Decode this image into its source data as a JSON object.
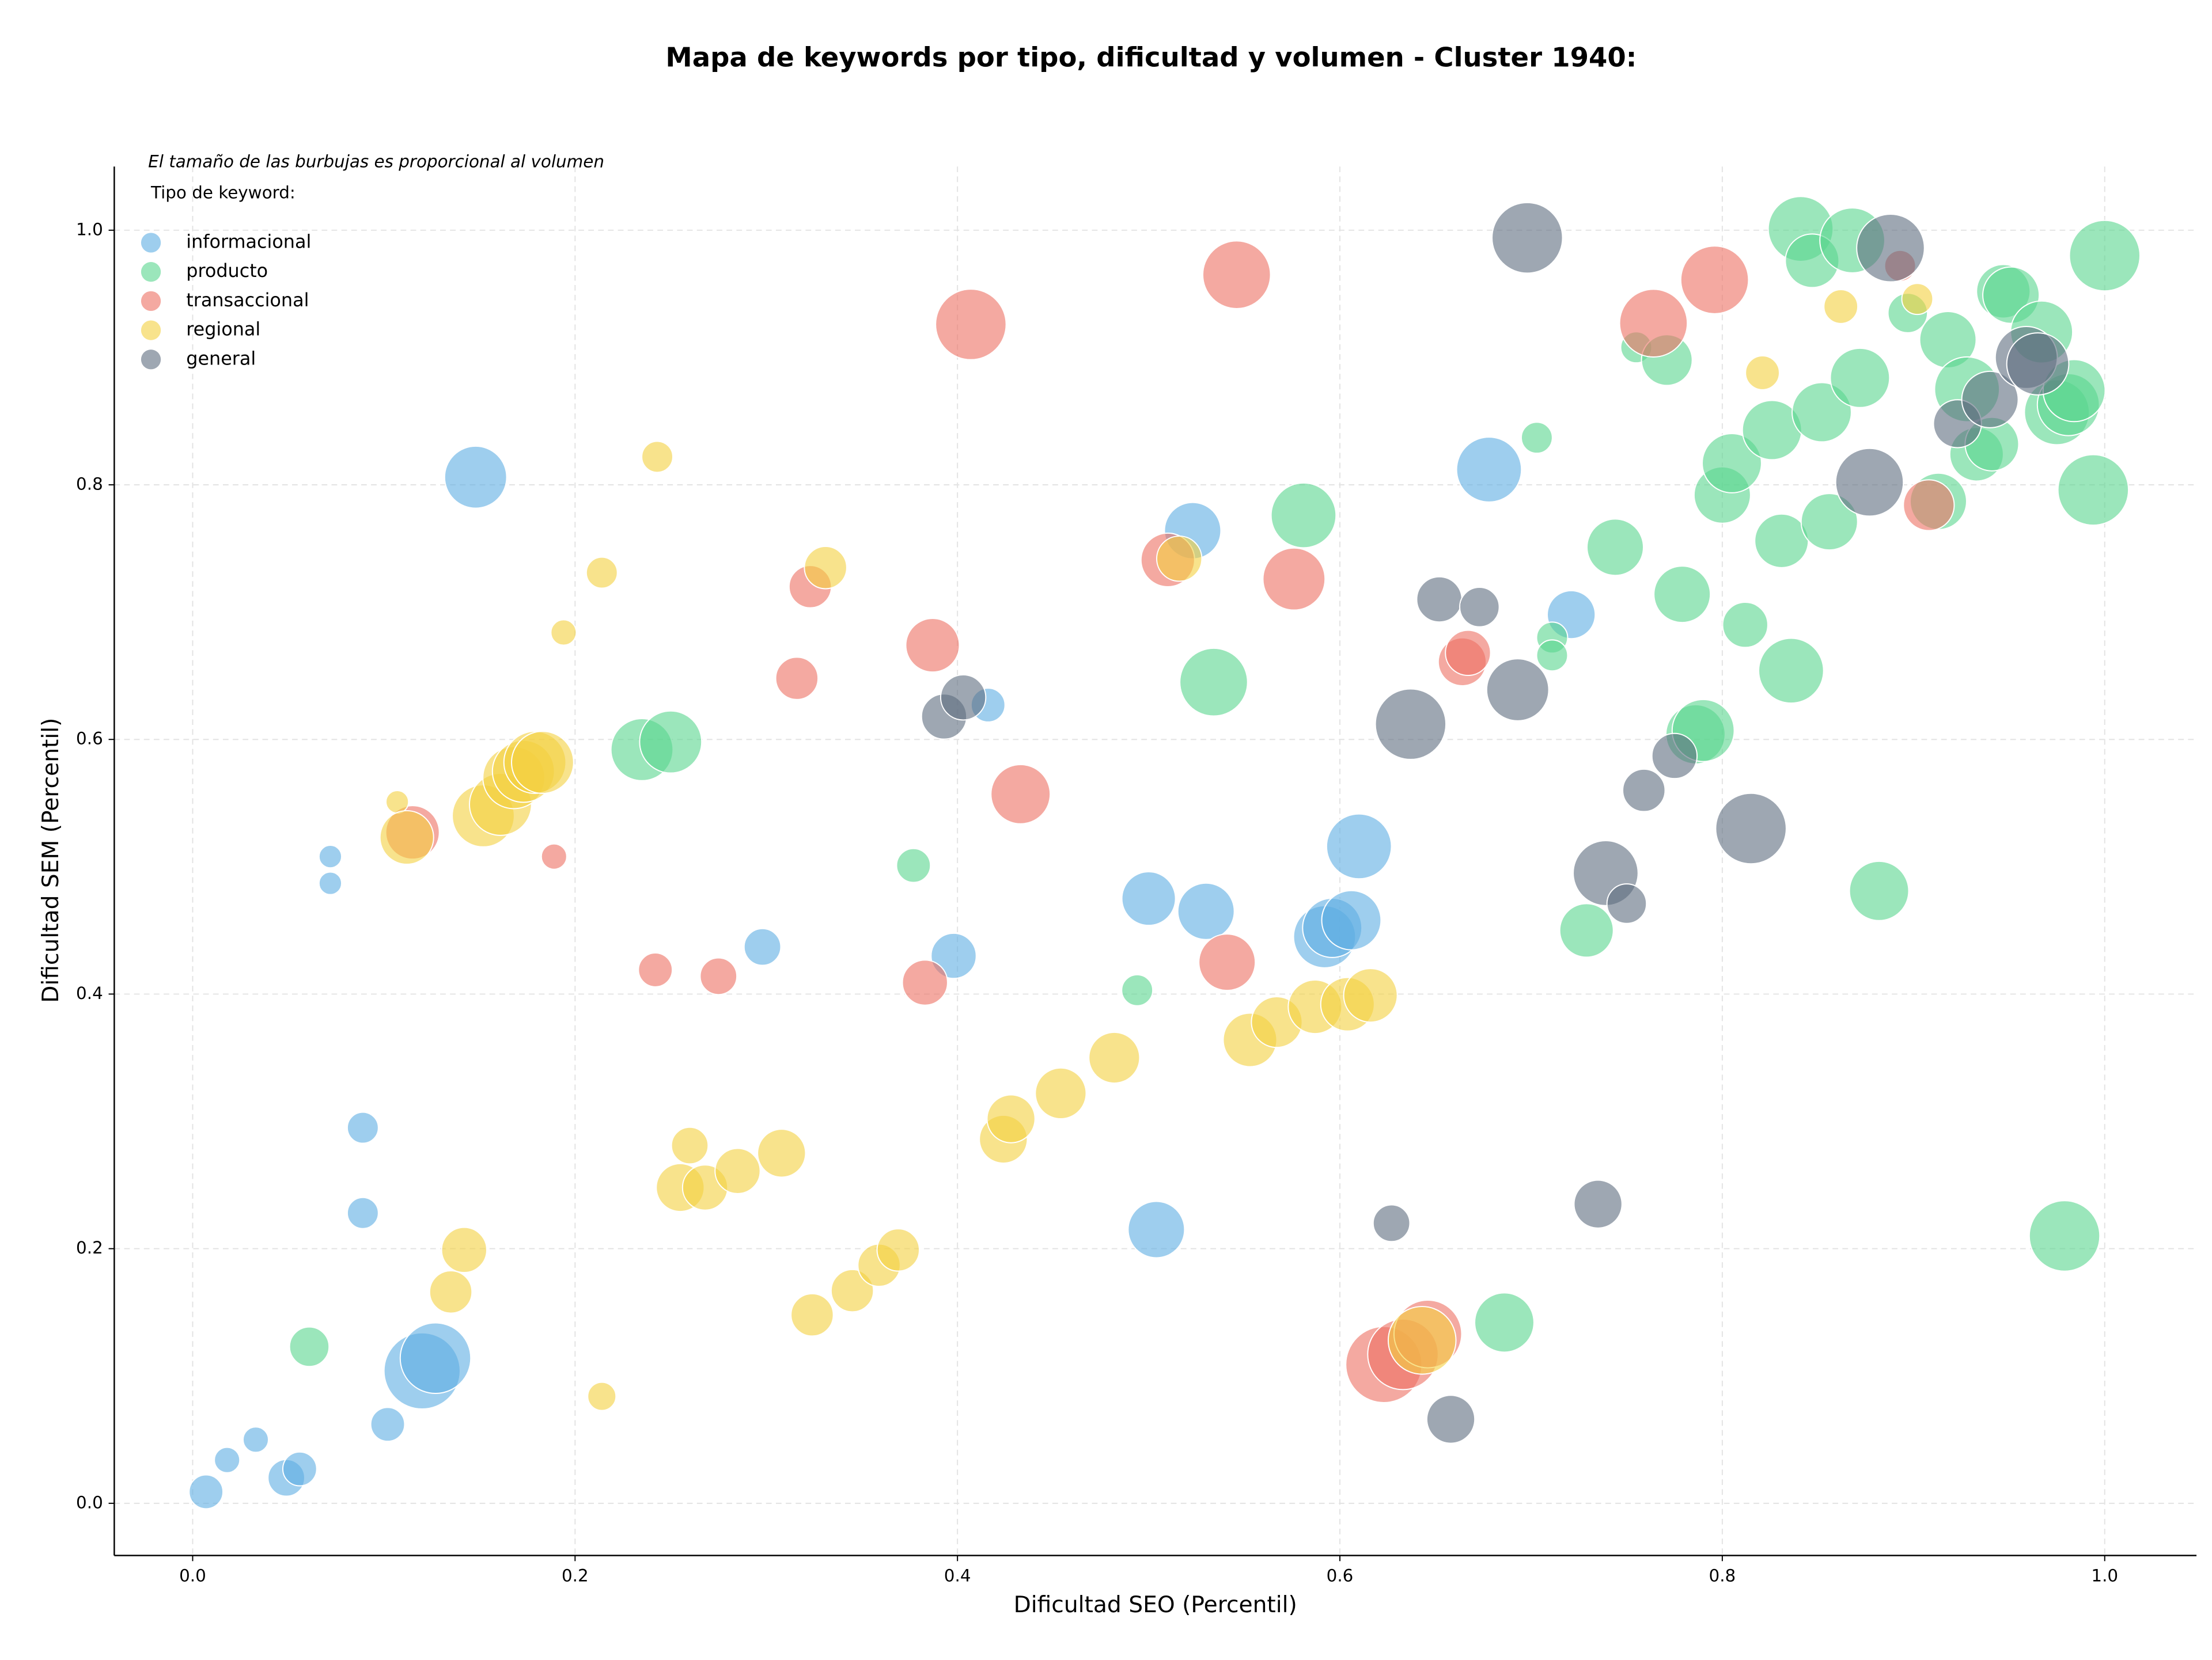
{
  "chart_data": {
    "type": "bubble",
    "title": "Mapa de keywords por tipo, dificultad y volumen - Cluster 1940:",
    "x_label": "Dificultad SEO (Percentil)",
    "y_label": "Dificultad SEM (Percentil)",
    "note": "El tamaño de las burbujas es proporcional al volumen",
    "legend_title": "Tipo de keyword:",
    "legend_position": "upper left",
    "grid": true,
    "xlim": [
      -0.041,
      1.048
    ],
    "ylim": [
      -0.041,
      1.05
    ],
    "xticks": [
      {
        "value": 0,
        "label": "0.0"
      },
      0.2,
      0.4,
      0.6,
      0.8,
      {
        "value": 1,
        "label": "1.0"
      }
    ],
    "yticks": [
      {
        "value": 0,
        "label": "0.0"
      },
      0.2,
      0.4,
      0.6,
      0.8,
      {
        "value": 1,
        "label": "1.0"
      }
    ],
    "series": [
      {
        "name": "informacional",
        "color": "#5DADE2",
        "x": [
          0.148,
          0.007,
          0.018,
          0.033,
          0.049,
          0.056,
          0.102,
          0.12,
          0.127,
          0.089,
          0.089,
          0.072,
          0.072,
          0.298,
          0.398,
          0.416,
          0.5,
          0.53,
          0.592,
          0.596,
          0.606,
          0.61,
          0.504,
          0.523,
          0.678,
          0.721
        ],
        "y": [
          0.806,
          0.009,
          0.034,
          0.05,
          0.02,
          0.027,
          0.062,
          0.104,
          0.114,
          0.228,
          0.295,
          0.508,
          0.487,
          0.437,
          0.43,
          0.627,
          0.475,
          0.465,
          0.445,
          0.452,
          0.458,
          0.516,
          0.215,
          0.764,
          0.812,
          0.698
        ],
        "sizes": [
          484,
          144,
          81,
          81,
          169,
          144,
          144,
          729,
          625,
          121,
          121,
          64,
          64,
          169,
          256,
          144,
          361,
          400,
          484,
          441,
          441,
          529,
          400,
          400,
          529,
          289
        ]
      },
      {
        "name": "producto",
        "color": "#58D68D",
        "x": [
          0.061,
          0.377,
          0.494,
          0.235,
          0.25,
          0.534,
          0.581,
          0.686,
          0.729,
          0.703,
          0.711,
          0.711,
          0.744,
          0.755,
          0.771,
          0.779,
          0.786,
          0.79,
          0.8,
          0.805,
          0.812,
          0.826,
          0.831,
          0.836,
          0.841,
          0.847,
          0.852,
          0.856,
          0.868,
          0.872,
          0.882,
          0.897,
          0.913,
          0.918,
          0.928,
          0.933,
          0.941,
          0.947,
          0.951,
          0.967,
          0.975,
          0.981,
          0.984,
          0.979,
          0.994,
          1.0
        ],
        "y": [
          0.123,
          0.501,
          0.403,
          0.592,
          0.598,
          0.645,
          0.776,
          0.142,
          0.45,
          0.837,
          0.68,
          0.666,
          0.751,
          0.908,
          0.898,
          0.714,
          0.604,
          0.607,
          0.792,
          0.817,
          0.69,
          0.843,
          0.756,
          0.654,
          1.001,
          0.976,
          0.857,
          0.771,
          0.992,
          0.884,
          0.481,
          0.935,
          0.787,
          0.914,
          0.875,
          0.824,
          0.832,
          0.952,
          0.949,
          0.92,
          0.857,
          0.863,
          0.874,
          0.21,
          0.796,
          0.98
        ],
        "sizes": [
          196,
          144,
          121,
          484,
          484,
          576,
          529,
          441,
          361,
          121,
          121,
          121,
          400,
          121,
          324,
          400,
          441,
          484,
          400,
          441,
          256,
          441,
          361,
          529,
          529,
          361,
          441,
          400,
          529,
          441,
          441,
          196,
          400,
          400,
          529,
          361,
          361,
          361,
          400,
          484,
          529,
          484,
          484,
          625,
          625,
          625
        ]
      },
      {
        "name": "transaccional",
        "color": "#EC7063",
        "x": [
          0.115,
          0.189,
          0.242,
          0.275,
          0.316,
          0.323,
          0.383,
          0.387,
          0.407,
          0.433,
          0.51,
          0.541,
          0.546,
          0.576,
          0.623,
          0.633,
          0.646,
          0.664,
          0.667,
          0.764,
          0.796,
          0.908,
          0.893
        ],
        "y": [
          0.527,
          0.508,
          0.419,
          0.414,
          0.648,
          0.72,
          0.409,
          0.674,
          0.926,
          0.557,
          0.741,
          0.425,
          0.965,
          0.726,
          0.109,
          0.117,
          0.133,
          0.661,
          0.668,
          0.927,
          0.961,
          0.784,
          0.972
        ],
        "sizes": [
          361,
          81,
          144,
          169,
          225,
          225,
          256,
          361,
          625,
          441,
          361,
          400,
          576,
          484,
          729,
          625,
          576,
          289,
          256,
          576,
          576,
          324,
          121
        ]
      },
      {
        "name": "regional",
        "color": "#F4D03F",
        "x": [
          0.107,
          0.112,
          0.152,
          0.161,
          0.168,
          0.173,
          0.179,
          0.183,
          0.194,
          0.214,
          0.243,
          0.142,
          0.135,
          0.214,
          0.255,
          0.26,
          0.268,
          0.285,
          0.308,
          0.324,
          0.331,
          0.345,
          0.359,
          0.369,
          0.424,
          0.428,
          0.454,
          0.482,
          0.516,
          0.553,
          0.567,
          0.587,
          0.604,
          0.616,
          0.643,
          0.821,
          0.862,
          0.902
        ],
        "y": [
          0.551,
          0.523,
          0.54,
          0.549,
          0.57,
          0.575,
          0.582,
          0.582,
          0.684,
          0.731,
          0.822,
          0.199,
          0.166,
          0.084,
          0.248,
          0.281,
          0.248,
          0.261,
          0.275,
          0.148,
          0.735,
          0.167,
          0.187,
          0.199,
          0.286,
          0.302,
          0.322,
          0.35,
          0.742,
          0.364,
          0.378,
          0.39,
          0.392,
          0.399,
          0.128,
          0.888,
          0.94,
          0.946
        ],
        "sizes": [
          64,
          361,
          484,
          484,
          484,
          484,
          484,
          484,
          81,
          121,
          121,
          256,
          225,
          100,
          289,
          169,
          256,
          256,
          289,
          225,
          225,
          225,
          225,
          225,
          289,
          289,
          324,
          324,
          256,
          361,
          324,
          361,
          361,
          361,
          576,
          144,
          144,
          121
        ]
      },
      {
        "name": "general",
        "color": "#5D6D7E",
        "x": [
          0.393,
          0.403,
          0.627,
          0.637,
          0.652,
          0.658,
          0.673,
          0.693,
          0.698,
          0.735,
          0.739,
          0.75,
          0.759,
          0.775,
          0.815,
          0.877,
          0.888,
          0.923,
          0.94,
          0.959,
          0.965
        ],
        "y": [
          0.618,
          0.633,
          0.22,
          0.612,
          0.71,
          0.066,
          0.704,
          0.639,
          0.994,
          0.235,
          0.495,
          0.471,
          0.56,
          0.587,
          0.53,
          0.802,
          0.986,
          0.848,
          0.867,
          0.9,
          0.895
        ],
        "sizes": [
          256,
          256,
          169,
          625,
          256,
          289,
          196,
          484,
          625,
          289,
          529,
          196,
          225,
          256,
          625,
          576,
          576,
          289,
          400,
          484,
          484
        ]
      }
    ]
  }
}
